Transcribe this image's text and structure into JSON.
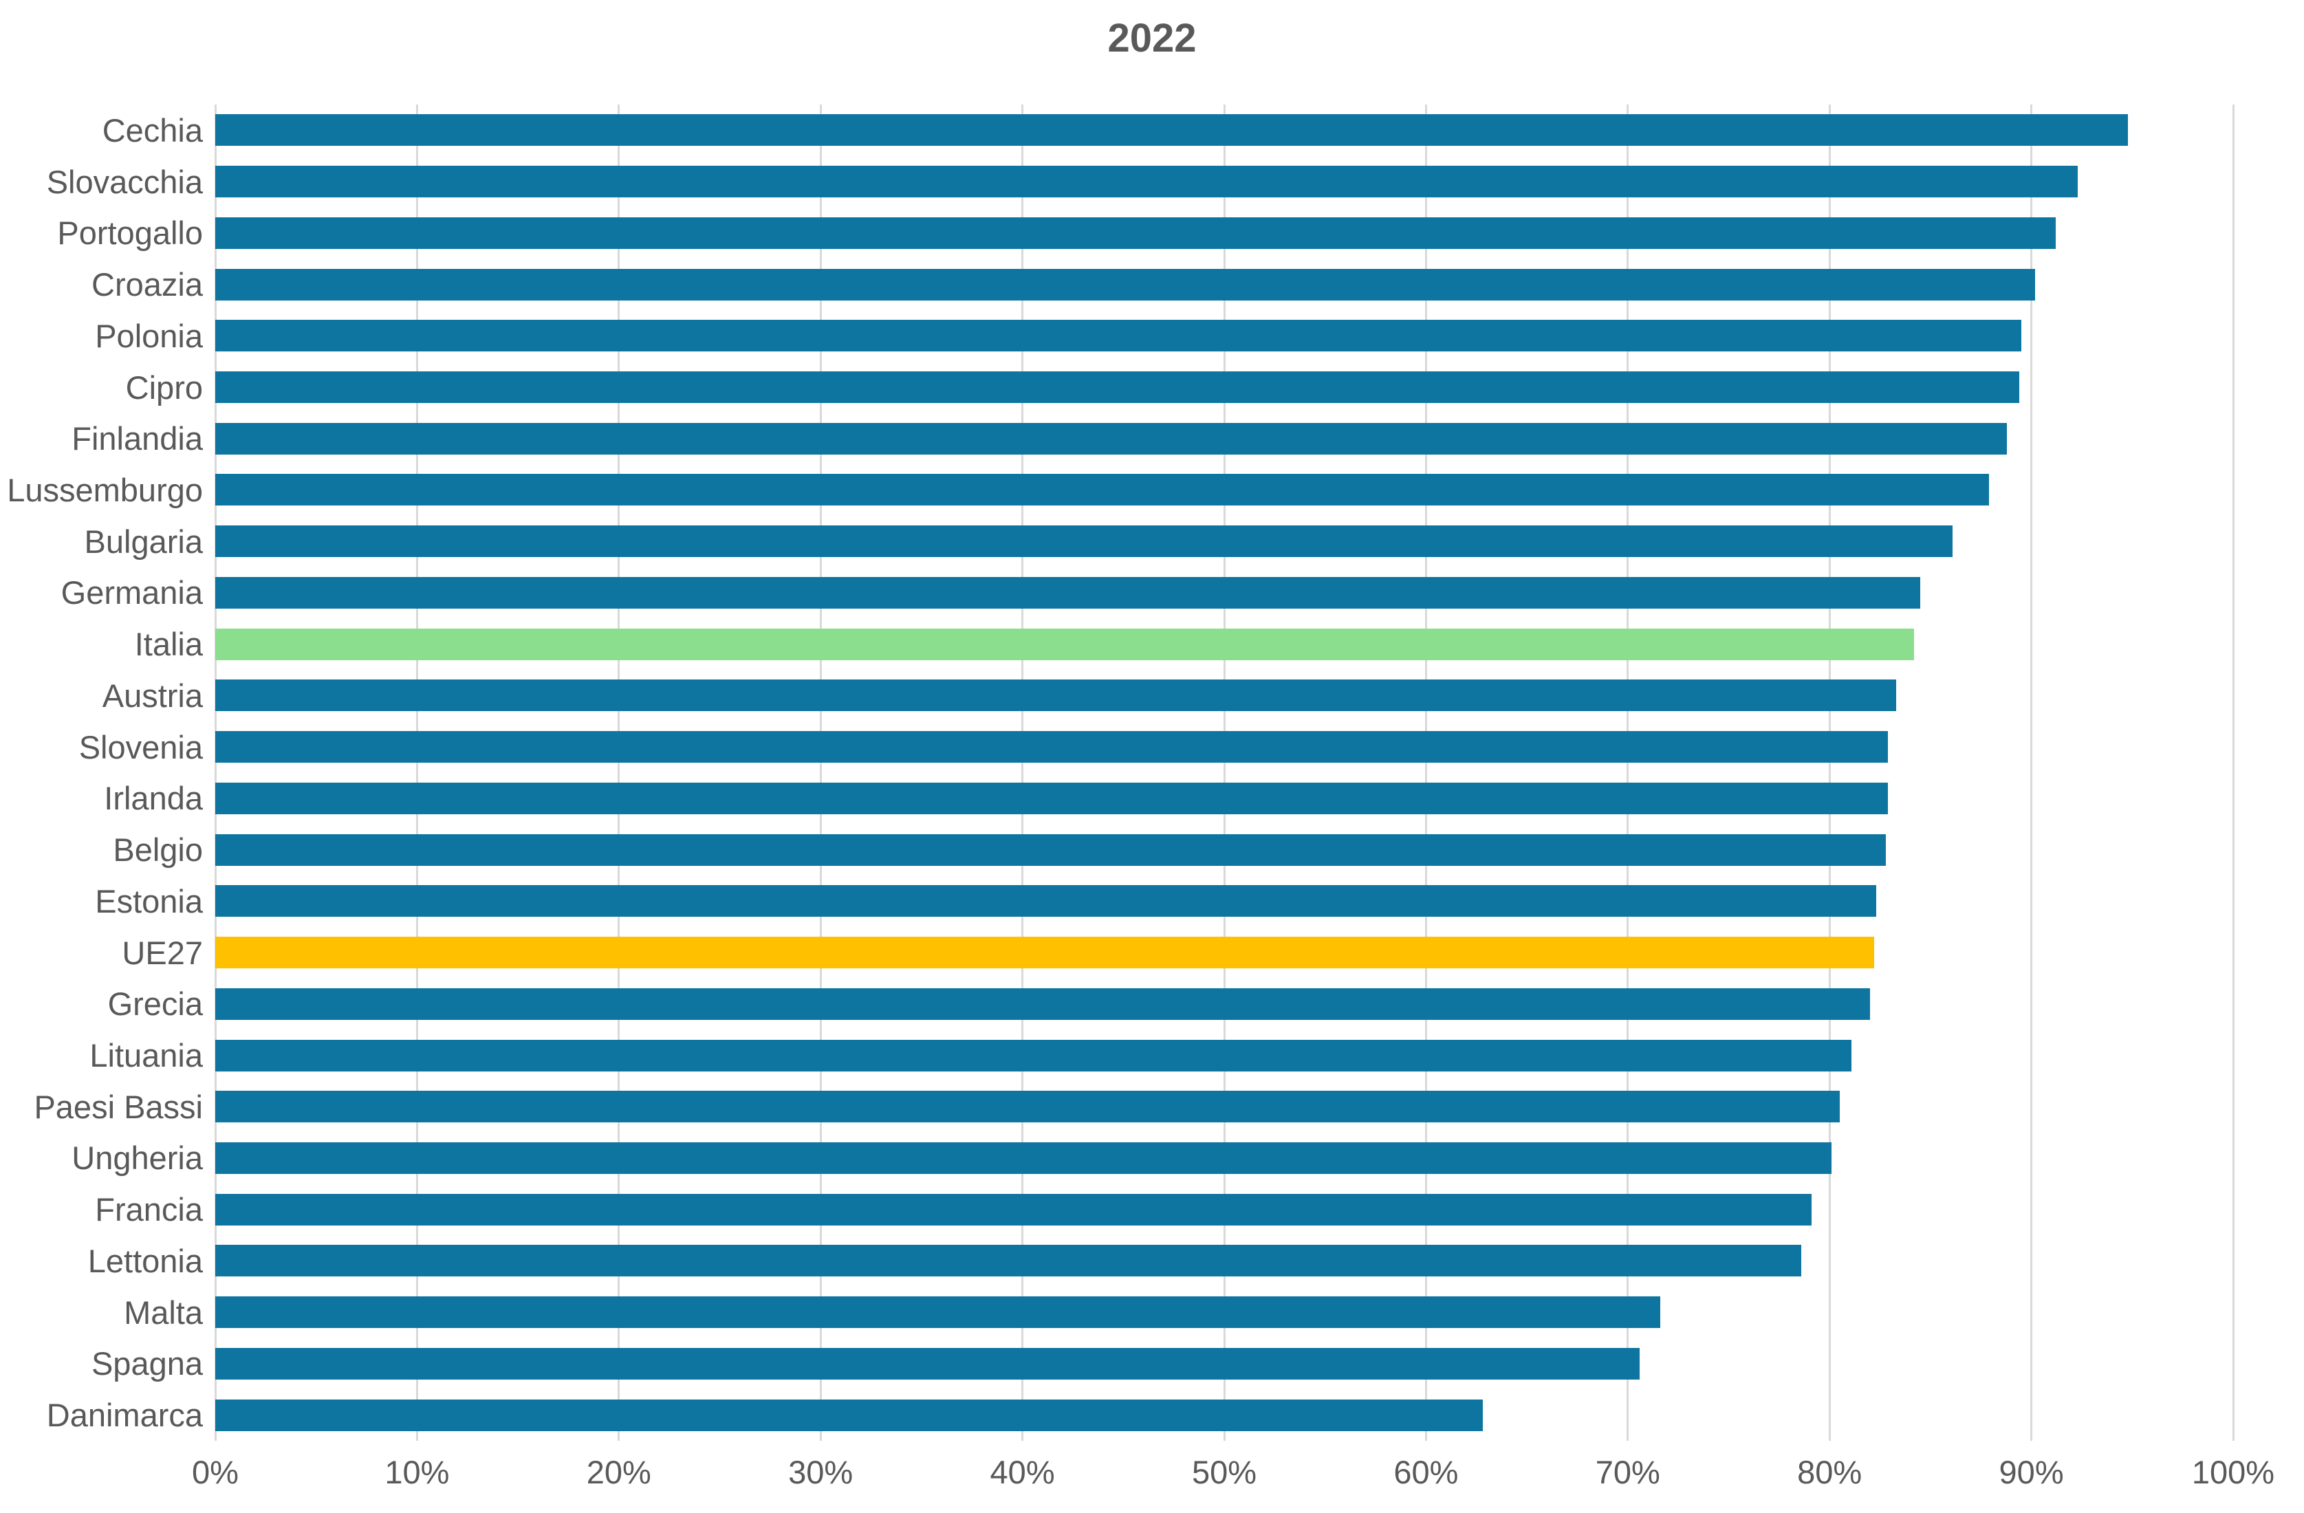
{
  "title": "2022",
  "chart_data": {
    "type": "bar",
    "orientation": "horizontal",
    "title": "2022",
    "xlabel": "",
    "ylabel": "",
    "xlim": [
      0,
      100
    ],
    "grid": true,
    "x_tick_labels": [
      "0%",
      "10%",
      "20%",
      "30%",
      "40%",
      "50%",
      "60%",
      "70%",
      "80%",
      "90%",
      "100%"
    ],
    "x_tick_values": [
      0,
      10,
      20,
      30,
      40,
      50,
      60,
      70,
      80,
      90,
      100
    ],
    "categories": [
      "Cechia",
      "Slovacchia",
      "Portogallo",
      "Croazia",
      "Polonia",
      "Cipro",
      "Finlandia",
      "Lussemburgo",
      "Bulgaria",
      "Germania",
      "Italia",
      "Austria",
      "Slovenia",
      "Irlanda",
      "Belgio",
      "Estonia",
      "UE27",
      "Grecia",
      "Lituania",
      "Paesi Bassi",
      "Ungheria",
      "Francia",
      "Lettonia",
      "Malta",
      "Spagna",
      "Danimarca"
    ],
    "values": [
      94.8,
      92.3,
      91.2,
      90.2,
      89.5,
      89.4,
      88.8,
      87.9,
      86.1,
      84.5,
      84.2,
      83.3,
      82.9,
      82.9,
      82.8,
      82.3,
      82.2,
      82.0,
      81.1,
      80.5,
      80.1,
      79.1,
      78.6,
      71.6,
      70.6,
      62.8
    ],
    "colors": {
      "default_bar": "#0E75A0",
      "highlight_italia": "#8BDE8D",
      "highlight_ue27": "#FFC000",
      "gridline": "#D9D9D9",
      "text": "#595959"
    },
    "highlighted_categories": {
      "Italia": "#8BDE8D",
      "UE27": "#FFC000"
    },
    "legend": null
  }
}
